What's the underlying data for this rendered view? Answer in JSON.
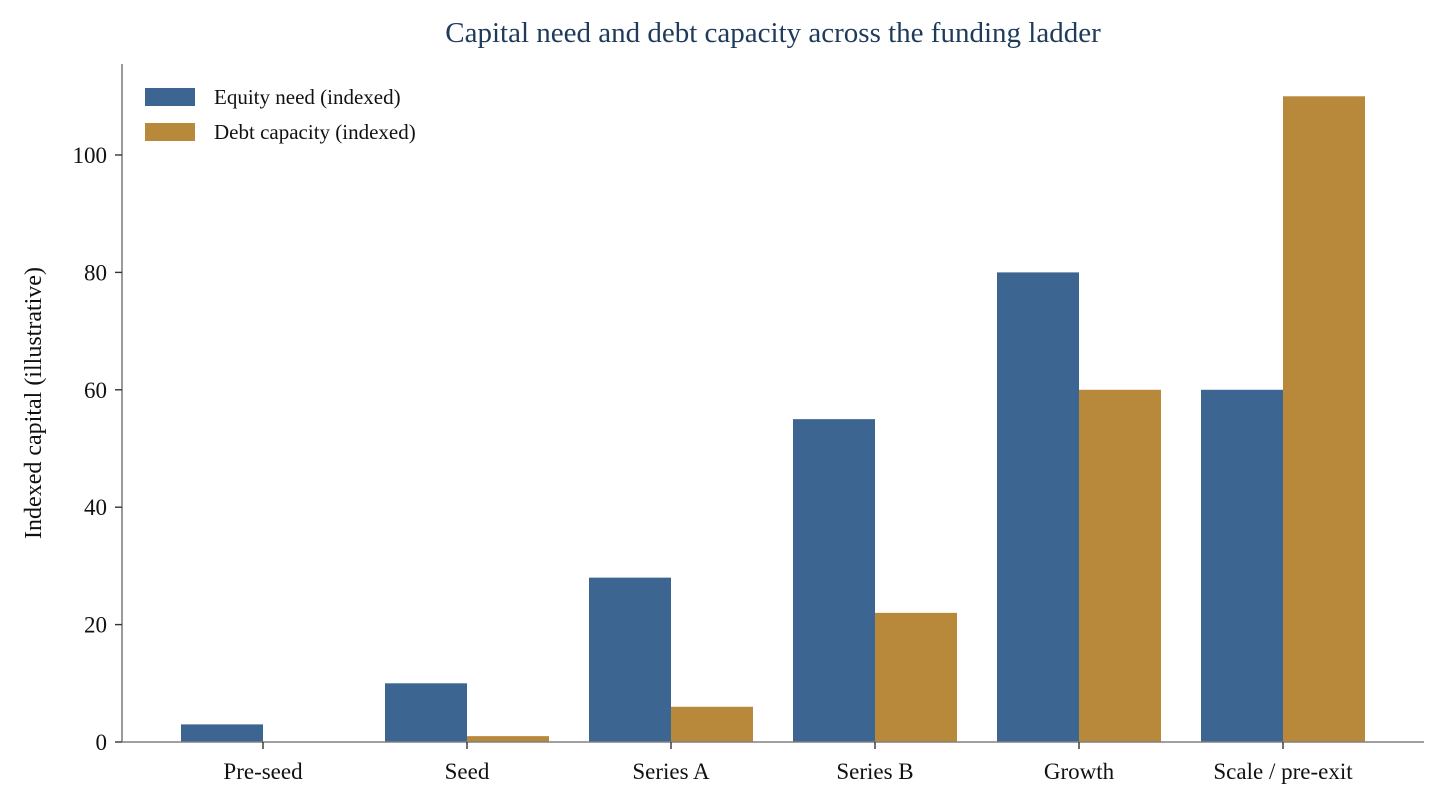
{
  "chart_data": {
    "type": "bar",
    "title": "Capital need and debt capacity across the funding ladder",
    "xlabel": "",
    "ylabel": "Indexed capital (illustrative)",
    "categories": [
      "Pre-seed",
      "Seed",
      "Series A",
      "Series B",
      "Growth",
      "Scale / pre-exit"
    ],
    "series": [
      {
        "name": "Equity need (indexed)",
        "color": "#3d6592",
        "values": [
          3,
          10,
          28,
          55,
          80,
          60
        ]
      },
      {
        "name": "Debt capacity (indexed)",
        "color": "#b8893b",
        "values": [
          0,
          1,
          6,
          22,
          60,
          110
        ]
      }
    ],
    "ylim": [
      0,
      115.5
    ],
    "yticks": [
      0,
      20,
      40,
      60,
      80,
      100
    ],
    "grid": false,
    "legend_position": "top-left"
  }
}
